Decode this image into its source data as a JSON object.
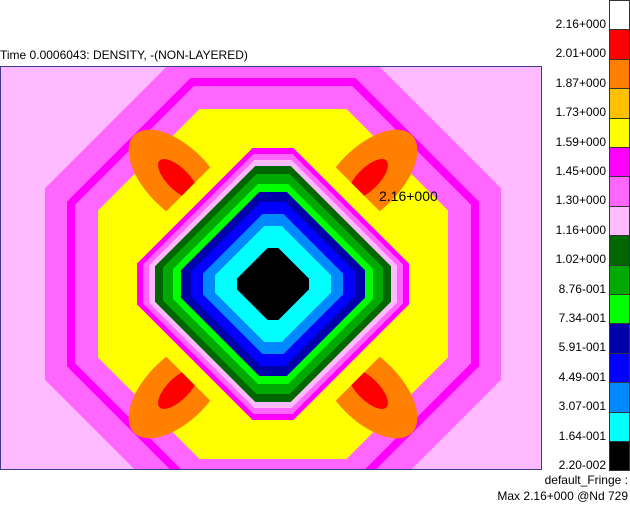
{
  "title": "Time 0.0006043: DENSITY, -(NON-LAYERED)",
  "annotation": "2.16+000",
  "footer": {
    "fringe_name": "default_Fringe :",
    "max_line": "Max 2.16+000 @Nd 729"
  },
  "legend": {
    "labels": [
      "2.16+000",
      "2.01+000",
      "1.87+000",
      "1.73+000",
      "1.59+000",
      "1.45+000",
      "1.30+000",
      "1.16+000",
      "1.02+000",
      "8.76-001",
      "7.34-001",
      "5.91-001",
      "4.49-001",
      "3.07-001",
      "1.64-001",
      "2.20-002"
    ],
    "colors": [
      "#ffffff",
      "#ff0000",
      "#ff8000",
      "#ffc000",
      "#ffff00",
      "#ff00ff",
      "#ff66ff",
      "#ffbbff",
      "#006600",
      "#00aa00",
      "#00ff00",
      "#0000aa",
      "#0000ff",
      "#0088ff",
      "#00ffff",
      "#000000"
    ]
  },
  "contour_colors": {
    "background": "#ffbbff",
    "outer_ring": "#ff66ff",
    "magenta": "#ff00ff",
    "yellow": "#ffff00",
    "orange": "#ff8000",
    "red": "#ff0000",
    "dark_green": "#006600",
    "green": "#00aa00",
    "light_green": "#00ff00",
    "dark_blue": "#0000aa",
    "blue": "#0000ff",
    "mid_blue": "#0088ff",
    "cyan": "#00ffff",
    "black": "#000000"
  }
}
